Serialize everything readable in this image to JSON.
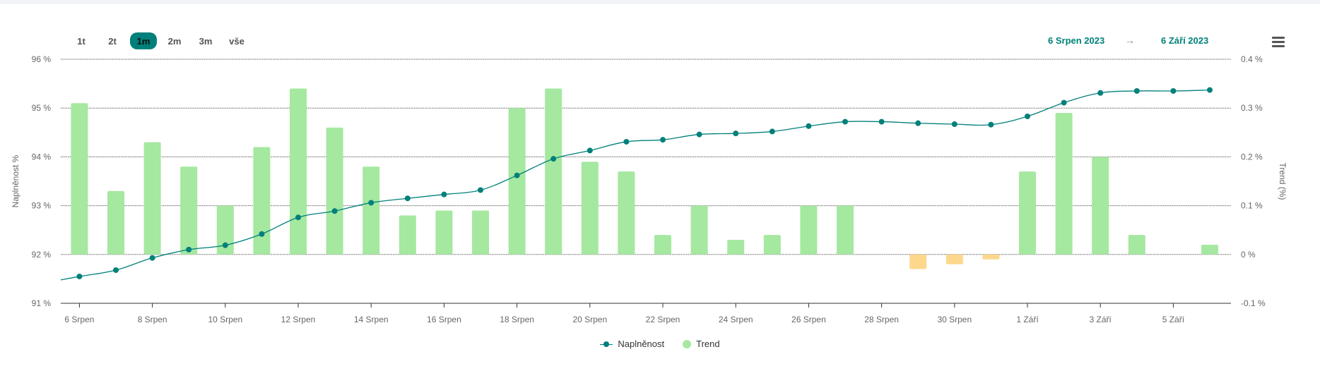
{
  "range_selector": {
    "buttons": [
      {
        "label": "1t",
        "active": false
      },
      {
        "label": "2t",
        "active": false
      },
      {
        "label": "1m",
        "active": true
      },
      {
        "label": "2m",
        "active": false
      },
      {
        "label": "3m",
        "active": false
      },
      {
        "label": "vše",
        "active": false
      }
    ]
  },
  "date_range": {
    "from": "6 Srpen 2023",
    "to": "6 Září 2023",
    "arrow": "→"
  },
  "colors": {
    "line": "#00807a",
    "bar_positive": "#a5e8a0",
    "bar_negative": "#fdd78c",
    "grid": "#666666",
    "axis_text": "#666666"
  },
  "chart_data": {
    "type": "bar+line",
    "grid": true,
    "legend_position": "bottom-center",
    "x_tick_labels": [
      "6 Srpen",
      "8 Srpen",
      "10 Srpen",
      "12 Srpen",
      "14 Srpen",
      "16 Srpen",
      "18 Srpen",
      "20 Srpen",
      "22 Srpen",
      "24 Srpen",
      "26 Srpen",
      "28 Srpen",
      "30 Srpen",
      "1 Září",
      "3 Září",
      "5 Září"
    ],
    "y_left": {
      "label": "Naplněnost %",
      "ticks": [
        "91 %",
        "92 %",
        "93 %",
        "94 %",
        "95 %",
        "96 %"
      ],
      "range": [
        91,
        96
      ]
    },
    "y_right": {
      "label": "Trend (%)",
      "ticks": [
        "-0.1 %",
        "0 %",
        "0.1 %",
        "0.2 %",
        "0.3 %",
        "0.4 %"
      ],
      "range": [
        -0.1,
        0.4
      ]
    },
    "series": [
      {
        "name": "Naplněnost",
        "type": "line",
        "axis": "left",
        "values": [
          91.55,
          91.68,
          91.93,
          92.1,
          92.19,
          92.42,
          92.76,
          92.89,
          93.06,
          93.15,
          93.23,
          93.32,
          93.62,
          93.96,
          94.13,
          94.31,
          94.35,
          94.46,
          94.48,
          94.52,
          94.63,
          94.72,
          94.72,
          94.69,
          94.67,
          94.66,
          94.83,
          95.11,
          95.31,
          95.35,
          95.35,
          95.37
        ]
      },
      {
        "name": "Trend",
        "type": "bar",
        "axis": "right",
        "values": [
          0.31,
          0.13,
          0.23,
          0.18,
          0.1,
          0.22,
          0.34,
          0.26,
          0.18,
          0.08,
          0.09,
          0.09,
          0.3,
          0.34,
          0.19,
          0.17,
          0.04,
          0.1,
          0.03,
          0.04,
          0.1,
          0.1,
          0.0,
          -0.03,
          -0.02,
          -0.01,
          0.17,
          0.29,
          0.2,
          0.04,
          0.0,
          0.02
        ]
      }
    ]
  }
}
